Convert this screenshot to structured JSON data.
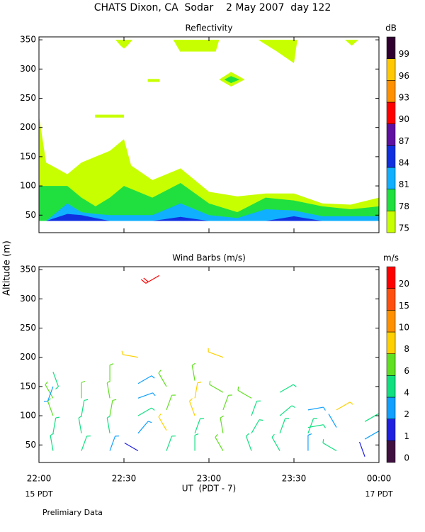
{
  "title": "CHATS Dixon, CA  Sodar    2 May 2007  day 122",
  "y_label": "Altitude (m)",
  "x_label": "UT  (PDT - 7)",
  "x_start_label": "15 PDT",
  "x_end_label": "17 PDT",
  "note": "Prelimiary Data",
  "chart_data": [
    {
      "type": "contour",
      "title": "Reflectivity",
      "colorbar_label": "dB",
      "levels": [
        75,
        78,
        81,
        84,
        87,
        90,
        93,
        96,
        99
      ],
      "colors": [
        "#c8ff00",
        "#20e040",
        "#10b0ff",
        "#1030e0",
        "#6010a0",
        "#ff0000",
        "#ff9000",
        "#ffc800",
        "#300030"
      ],
      "xlim": [
        22,
        24
      ],
      "ylim": [
        20,
        355
      ],
      "xticks": [
        {
          "value": 22,
          "label": "22:00"
        },
        {
          "value": 22.5,
          "label": "22:30"
        },
        {
          "value": 23,
          "label": "23:00"
        },
        {
          "value": 23.5,
          "label": "23:30"
        },
        {
          "value": 24,
          "label": "00:00"
        }
      ],
      "yticks": [
        50,
        100,
        150,
        200,
        250,
        300,
        350
      ],
      "min_altitude": 40,
      "x": [
        22,
        22.042,
        22.167,
        22.25,
        22.333,
        22.417,
        22.5,
        22.542,
        22.667,
        22.833,
        23,
        23.167,
        23.333,
        23.5,
        23.667,
        23.833,
        24
      ],
      "series": [
        {
          "color": "#c8ff00",
          "values": [
            220,
            140,
            120,
            140,
            150,
            160,
            180,
            135,
            110,
            130,
            90,
            82,
            87,
            87,
            70,
            68,
            80
          ]
        },
        {
          "color": "#20e040",
          "values": [
            100,
            100,
            100,
            80,
            65,
            80,
            100,
            95,
            80,
            105,
            70,
            55,
            80,
            75,
            65,
            60,
            65
          ]
        },
        {
          "color": "#10b0ff",
          "values": [
            40,
            40,
            70,
            55,
            52,
            50,
            50,
            50,
            50,
            70,
            50,
            45,
            60,
            58,
            48,
            48,
            48
          ]
        },
        {
          "color": "#1030e0",
          "values": [
            40,
            40,
            52,
            50,
            45,
            40,
            40,
            40,
            40,
            47,
            40,
            40,
            40,
            48,
            40,
            40,
            40
          ]
        }
      ],
      "patches": [
        {
          "color": "#c8ff00",
          "x": [
            22.45,
            22.55,
            22.52,
            22.5,
            22.48
          ],
          "y": [
            350,
            350,
            340,
            335,
            340
          ]
        },
        {
          "color": "#c8ff00",
          "x": [
            22.79,
            23.06,
            23.04,
            22.83
          ],
          "y": [
            350,
            350,
            330,
            330
          ]
        },
        {
          "color": "#c8ff00",
          "x": [
            23.29,
            23.52,
            23.5,
            23.4
          ],
          "y": [
            350,
            350,
            310,
            330
          ]
        },
        {
          "color": "#c8ff00",
          "x": [
            23.8,
            23.88,
            23.84
          ],
          "y": [
            350,
            350,
            340
          ]
        },
        {
          "color": "#c8ff00",
          "x": [
            22.33,
            22.5,
            22.5,
            22.33
          ],
          "y": [
            222,
            222,
            217,
            217
          ]
        },
        {
          "color": "#c8ff00",
          "x": [
            22.64,
            22.71,
            22.71,
            22.64
          ],
          "y": [
            283,
            283,
            278,
            278
          ]
        },
        {
          "color": "#c8ff00",
          "x": [
            23.06,
            23.13,
            23.21,
            23.13
          ],
          "y": [
            282,
            295,
            282,
            270
          ]
        },
        {
          "color": "#20e040",
          "x": [
            23.09,
            23.13,
            23.18,
            23.13
          ],
          "y": [
            282,
            288,
            282,
            276
          ]
        }
      ]
    },
    {
      "type": "barbs",
      "title": "Wind Barbs (m/s)",
      "colorbar_label": "m/s",
      "levels": [
        0,
        1,
        2,
        4,
        6,
        8,
        10,
        15,
        20
      ],
      "colors": [
        "#401040",
        "#2020e0",
        "#10a0ff",
        "#10e080",
        "#60e020",
        "#ffd000",
        "#ff9000",
        "#ff5010",
        "#ff0000"
      ],
      "xlim": [
        22,
        24
      ],
      "ylim": [
        20,
        355
      ],
      "xticks": [
        {
          "value": 22,
          "label": "22:00"
        },
        {
          "value": 22.5,
          "label": "22:30"
        },
        {
          "value": 23,
          "label": "23:00"
        },
        {
          "value": 23.5,
          "label": "23:30"
        },
        {
          "value": 24,
          "label": "00:00"
        }
      ],
      "yticks": [
        50,
        100,
        150,
        200,
        250,
        300,
        350
      ],
      "barbs": {
        "x": [
          22.083,
          22.083,
          22.083,
          22.083,
          22.083,
          22.083,
          22.25,
          22.25,
          22.25,
          22.25,
          22.417,
          22.417,
          22.417,
          22.417,
          22.417,
          22.583,
          22.583,
          22.583,
          22.583,
          22.583,
          22.583,
          22.75,
          22.75,
          22.75,
          22.75,
          22.917,
          22.917,
          22.917,
          22.917,
          22.917,
          23.083,
          23.083,
          23.083,
          23.083,
          23.083,
          23.25,
          23.25,
          23.25,
          23.25,
          23.417,
          23.417,
          23.417,
          23.417,
          23.583,
          23.583,
          23.583,
          23.583,
          23.75,
          23.75,
          23.75,
          23.917,
          23.917,
          23.917,
          22.708
        ],
        "altitude": [
          40,
          70,
          100,
          130,
          150,
          175,
          40,
          70,
          100,
          130,
          40,
          70,
          100,
          130,
          160,
          40,
          70,
          100,
          130,
          155,
          200,
          40,
          75,
          110,
          150,
          40,
          70,
          100,
          130,
          160,
          40,
          70,
          110,
          140,
          200,
          40,
          70,
          100,
          130,
          40,
          70,
          100,
          140,
          40,
          70,
          80,
          110,
          40,
          80,
          110,
          30,
          60,
          90,
          340
        ],
        "speed": [
          5,
          4,
          6,
          7,
          3,
          5,
          4,
          5,
          5,
          6,
          3,
          5,
          6,
          7,
          6,
          1,
          3,
          4,
          3,
          3,
          8,
          4,
          8,
          7,
          6,
          5,
          5,
          8,
          8,
          6,
          6,
          7,
          6,
          7,
          8,
          4,
          5,
          5,
          7,
          5,
          4,
          5,
          5,
          3,
          5,
          4,
          3,
          4,
          2,
          8,
          1,
          3,
          5,
          20
        ],
        "direction": [
          350,
          10,
          340,
          330,
          200,
          160,
          20,
          350,
          10,
          0,
          20,
          350,
          10,
          350,
          0,
          300,
          40,
          60,
          70,
          60,
          280,
          20,
          330,
          20,
          330,
          0,
          20,
          340,
          10,
          350,
          330,
          350,
          20,
          300,
          290,
          340,
          30,
          20,
          300,
          330,
          20,
          50,
          60,
          0,
          20,
          80,
          80,
          300,
          330,
          60,
          340,
          60,
          60,
          240
        ]
      }
    }
  ]
}
